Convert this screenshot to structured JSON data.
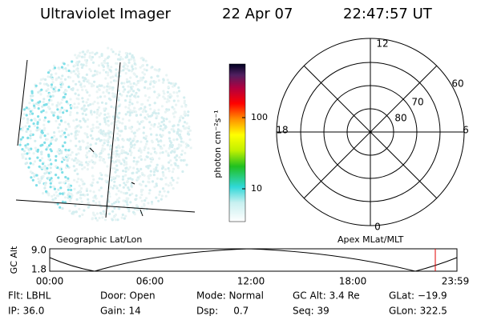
{
  "header": {
    "title": "Ultraviolet Imager",
    "date": "22 Apr 07",
    "time": "22:47:57 UT"
  },
  "colorbar": {
    "label": "photon cm⁻²s⁻¹",
    "ticks": [
      "100",
      "10"
    ]
  },
  "polar": {
    "labels": {
      "top": "12",
      "bottom": "0",
      "left": "18",
      "right": "6"
    },
    "rings": [
      "60",
      "70",
      "80"
    ]
  },
  "timeline": {
    "left_title": "Geographic Lat/Lon",
    "right_title": "Apex MLat/MLT",
    "y_label": "GC Alt",
    "y_ticks": [
      "9.0",
      "1.8"
    ],
    "x_ticks": [
      "00:00",
      "06:00",
      "12:00",
      "18:00",
      "23:59"
    ]
  },
  "info": {
    "rows": [
      [
        "Flt: LBHL",
        "Door: Open",
        "Mode: Normal",
        "GC Alt: 3.4 Re",
        "GLat: −19.9"
      ],
      [
        "IP: 36.0",
        "Gain: 14",
        "Dsp:     0.7",
        "Seq: 39",
        "GLon: 322.5"
      ]
    ]
  }
}
